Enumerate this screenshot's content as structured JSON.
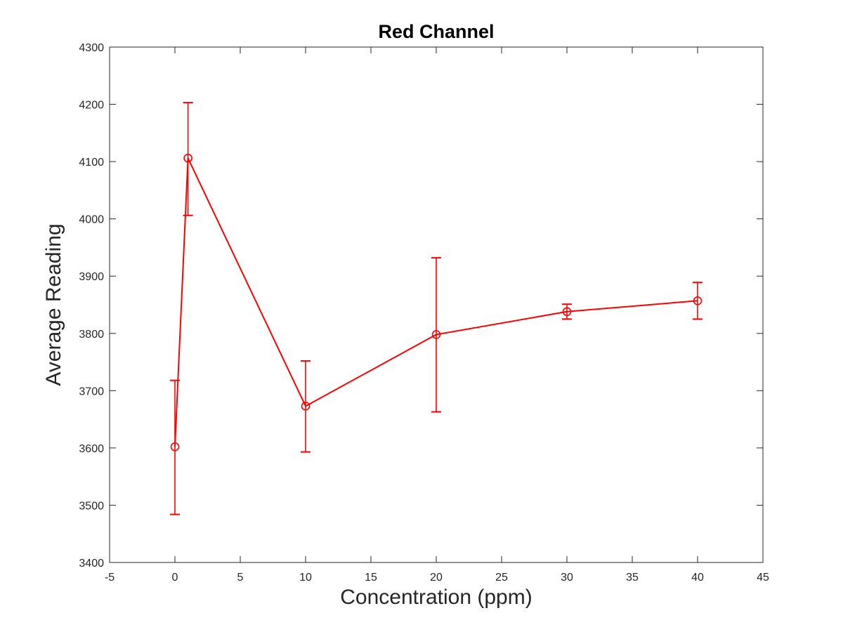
{
  "chart_data": {
    "type": "line",
    "title": "Red Channel",
    "xlabel": "Concentration (ppm)",
    "ylabel": "Average Reading",
    "xlim": [
      -5,
      45
    ],
    "ylim": [
      3400,
      4300
    ],
    "xticks": [
      -5,
      0,
      5,
      10,
      15,
      20,
      25,
      30,
      35,
      40,
      45
    ],
    "yticks": [
      3400,
      3500,
      3600,
      3700,
      3800,
      3900,
      4000,
      4100,
      4200,
      4300
    ],
    "grid": false,
    "legend": "none",
    "series": [
      {
        "color": "#ff0000",
        "marker": "circle",
        "error_bars": true,
        "points": [
          {
            "x": 0,
            "y": 3602,
            "err_low": 3484,
            "err_high": 3718
          },
          {
            "x": 1,
            "y": 4106,
            "err_low": 4006,
            "err_high": 4203
          },
          {
            "x": 10,
            "y": 3673,
            "err_low": 3593,
            "err_high": 3752
          },
          {
            "x": 20,
            "y": 3798,
            "err_low": 3663,
            "err_high": 3932
          },
          {
            "x": 30,
            "y": 3838,
            "err_low": 3825,
            "err_high": 3851
          },
          {
            "x": 40,
            "y": 3857,
            "err_low": 3825,
            "err_high": 3889
          }
        ]
      }
    ]
  }
}
